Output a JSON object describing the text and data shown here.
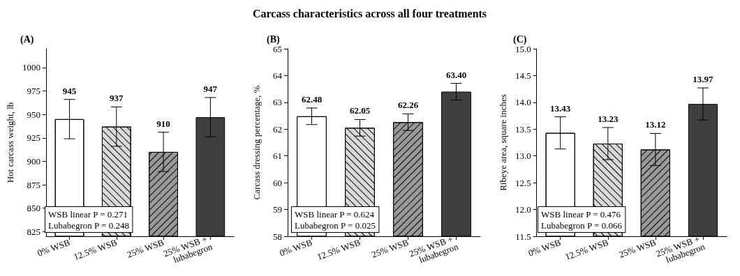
{
  "chart_data": [
    {
      "type": "bar",
      "subtitle": "(A)",
      "ylabel": "Hot carcass weight, lb",
      "categories": [
        "0% WSB",
        "12.5% WSB",
        "25% WSB",
        "25% WSB + lubabegron"
      ],
      "values": [
        945,
        937,
        910,
        947
      ],
      "colors": [
        "#ffffff",
        "#d9d9d9",
        "#999999",
        "#404040"
      ],
      "errors": [
        21,
        21,
        21,
        21
      ],
      "value_labels": [
        "945",
        "937",
        "910",
        "947"
      ],
      "ylim": [
        820,
        1020
      ],
      "yticks": [
        825,
        850,
        875,
        900,
        925,
        950,
        975,
        1000
      ],
      "annotations": [
        "WSB linear P = 0.271\nLubabegron P = 0.248"
      ]
    },
    {
      "type": "bar",
      "title": "Carcass characteristics across all four treatments",
      "subtitle": "(B)",
      "ylabel": "Carcass dressing percentage, %",
      "categories": [
        "0% WSB",
        "12.5% WSB",
        "25% WSB",
        "25% WSB + lubabegron"
      ],
      "values": [
        62.48,
        62.05,
        62.26,
        63.4
      ],
      "colors": [
        "#ffffff",
        "#d9d9d9",
        "#999999",
        "#404040"
      ],
      "errors": [
        0.31,
        0.31,
        0.31,
        0.31
      ],
      "value_labels": [
        "62.48",
        "62.05",
        "62.26",
        "63.40"
      ],
      "ylim": [
        58,
        65
      ],
      "yticks": [
        58,
        59,
        60,
        61,
        62,
        63,
        64,
        65
      ],
      "annotations": [
        "WSB linear P = 0.624\nLubabegron P = 0.025"
      ]
    },
    {
      "type": "bar",
      "subtitle": "(C)",
      "ylabel": "Ribeye area, square inches",
      "categories": [
        "0% WSB",
        "12.5% WSB",
        "25% WSB",
        "25% WSB + lubabegron"
      ],
      "values": [
        13.43,
        13.23,
        13.12,
        13.97
      ],
      "colors": [
        "#ffffff",
        "#d9d9d9",
        "#999999",
        "#404040"
      ],
      "errors": [
        0.3,
        0.3,
        0.3,
        0.3
      ],
      "value_labels": [
        "13.43",
        "13.23",
        "13.12",
        "13.97"
      ],
      "ylim": [
        11.5,
        15
      ],
      "yticks": [
        {
          "value": 11.5,
          "label": "11.5"
        },
        {
          "value": 12,
          "label": "12.0"
        },
        {
          "value": 12.5,
          "label": "12.5"
        },
        {
          "value": 13,
          "label": "13.0"
        },
        {
          "value": 13.5,
          "label": "13.5"
        },
        {
          "value": 14,
          "label": "14.0"
        },
        {
          "value": 14.5,
          "label": "14.5"
        },
        {
          "value": 15,
          "label": "15.0"
        }
      ],
      "annotations": [
        "WSB linear P = 0.476\nLubabegron P = 0.066"
      ]
    }
  ]
}
